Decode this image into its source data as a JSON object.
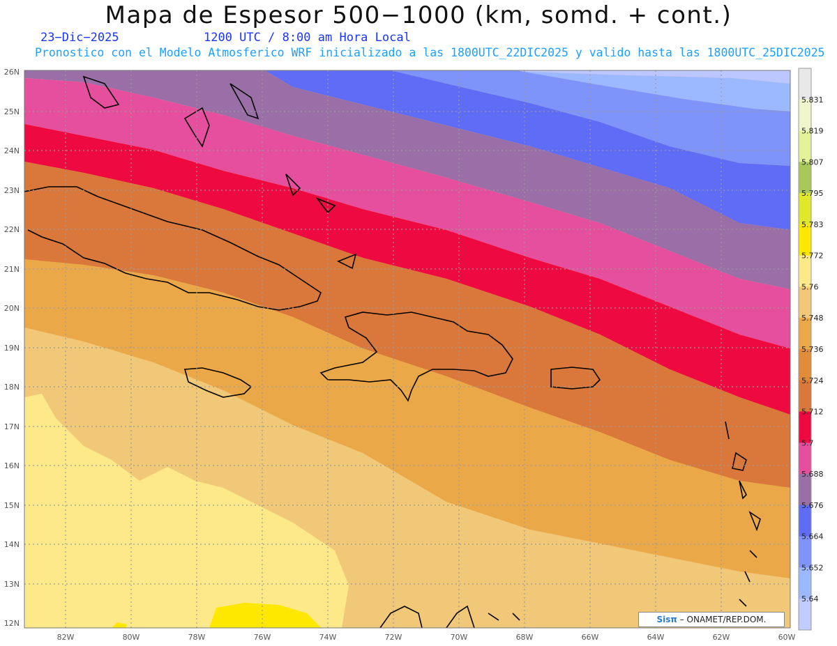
{
  "header": {
    "title": "Mapa de Espesor 500−1000 (km, somd. + cont.)",
    "date": "23−Dic−2025",
    "time": "1200 UTC / 8:00 am Hora Local",
    "description": "Pronostico con el Modelo Atmosferico WRF inicializado a las 1800UTC_22DIC2025 y valido hasta las  1800UTC_25DIC2025"
  },
  "map": {
    "lat_labels": [
      "26N",
      "25N",
      "24N",
      "23N",
      "22N",
      "21N",
      "20N",
      "19N",
      "18N",
      "17N",
      "16N",
      "15N",
      "14N",
      "13N",
      "12N"
    ],
    "lon_labels": [
      "82W",
      "80W",
      "78W",
      "76W",
      "74W",
      "72W",
      "70W",
      "68W",
      "66W",
      "64W",
      "62W",
      "60W"
    ],
    "gridline_style": "dotted gray"
  },
  "colorbar": {
    "labels": [
      "5.831",
      "5.819",
      "5.807",
      "5.795",
      "5.783",
      "5.772",
      "5.76",
      "5.748",
      "5.736",
      "5.724",
      "5.712",
      "5.7",
      "5.688",
      "5.676",
      "5.664",
      "5.652",
      "5.64"
    ],
    "colors": [
      "#e8e8e8",
      "#f1f5cc",
      "#e4f29a",
      "#a8c85a",
      "#dfe82a",
      "#ffe800",
      "#fde98a",
      "#f1c878",
      "#eba848",
      "#e08c3a",
      "#d9783a",
      "#ee0a40",
      "#e64e9e",
      "#9a6ea6",
      "#5f6cf6",
      "#7e94fa",
      "#9cb8fe",
      "#c2ccff"
    ]
  },
  "credit": {
    "brand": "Sisπ",
    "text": " – ONAMET/REP.DOM."
  }
}
